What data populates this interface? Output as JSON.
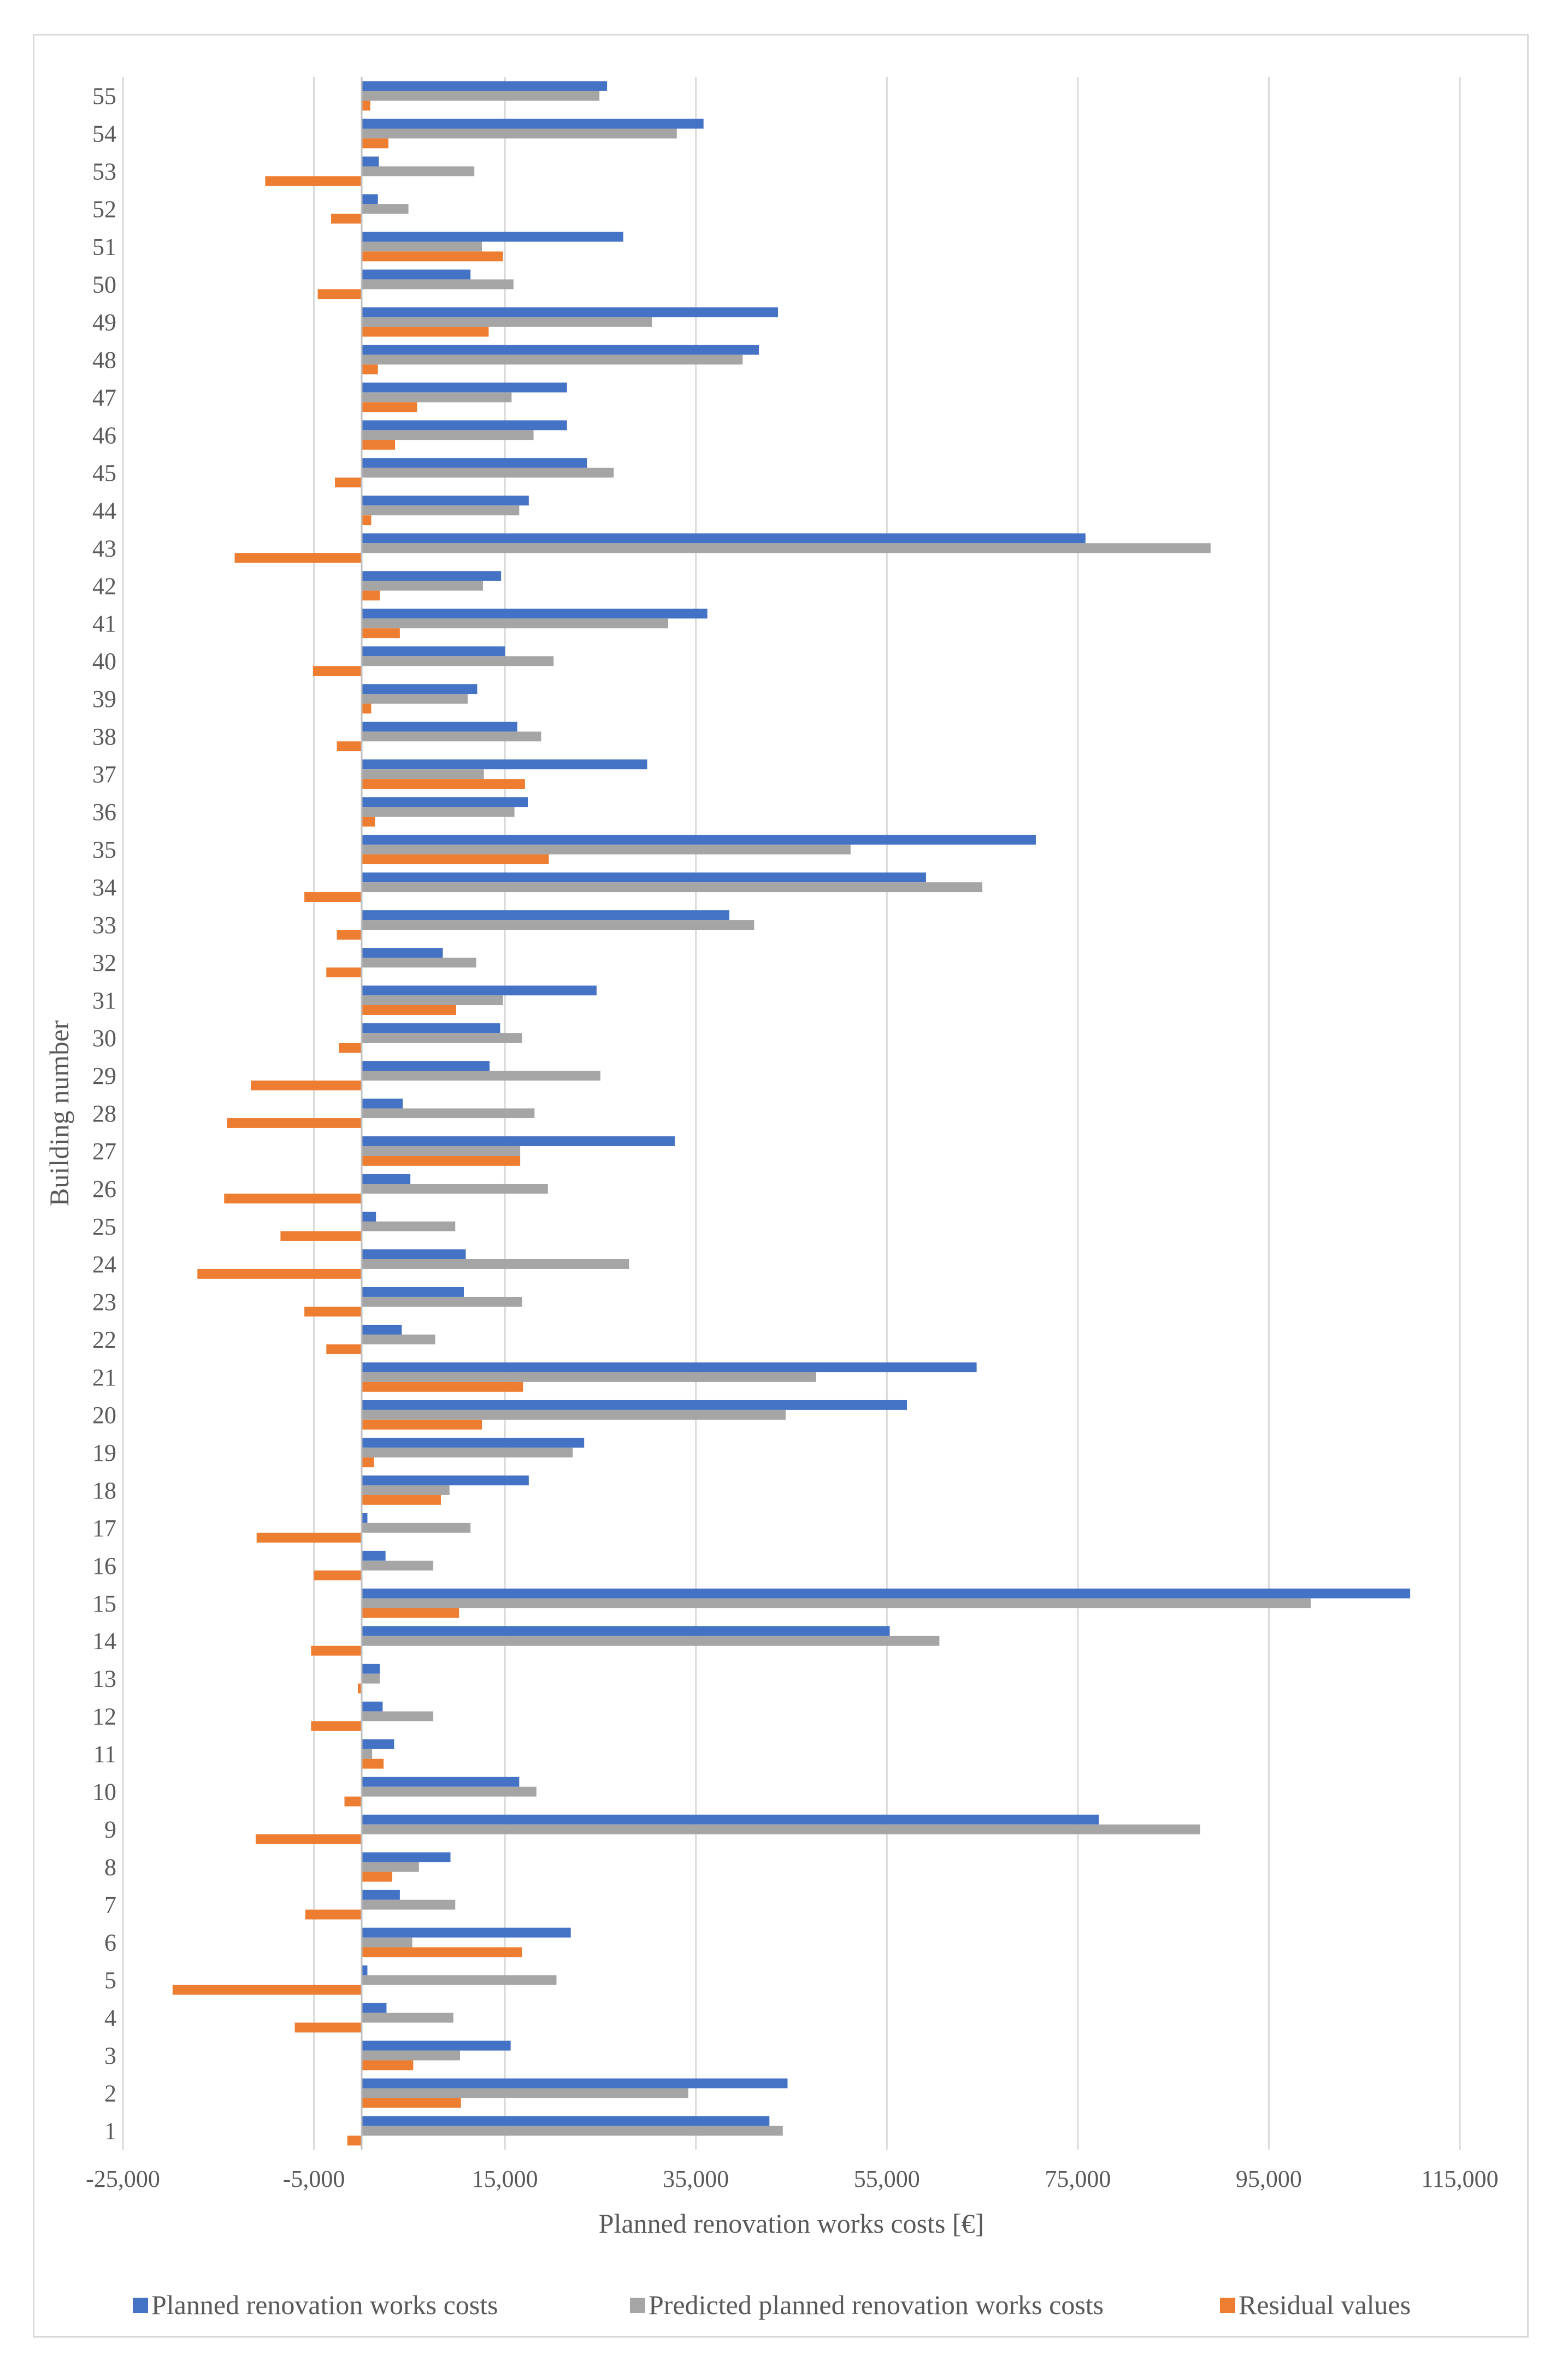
{
  "chart_data": {
    "type": "bar",
    "orientation": "horizontal",
    "title": "",
    "xlabel": "Planned renovation works costs [€]",
    "ylabel": "Building number",
    "xlim": [
      -25000,
      115000
    ],
    "x_ticks": [
      -25000,
      -5000,
      15000,
      35000,
      55000,
      75000,
      95000,
      115000
    ],
    "x_tick_labels": [
      "-25,000",
      "-5,000",
      "15,000",
      "35,000",
      "55,000",
      "75,000",
      "95,000",
      "115,000"
    ],
    "grid": true,
    "legend_position": "bottom",
    "categories": [
      "1",
      "2",
      "3",
      "4",
      "5",
      "6",
      "7",
      "8",
      "9",
      "10",
      "11",
      "12",
      "13",
      "14",
      "15",
      "16",
      "17",
      "18",
      "19",
      "20",
      "21",
      "22",
      "23",
      "24",
      "25",
      "26",
      "27",
      "28",
      "29",
      "30",
      "31",
      "32",
      "33",
      "34",
      "35",
      "36",
      "37",
      "38",
      "39",
      "40",
      "41",
      "42",
      "43",
      "44",
      "45",
      "46",
      "47",
      "48",
      "49",
      "50",
      "51",
      "52",
      "53",
      "54",
      "55"
    ],
    "series": [
      {
        "name": "Planned renovation works costs",
        "color": "#4472c4",
        "values": [
          42700,
          44600,
          15600,
          2600,
          600,
          21900,
          4000,
          9300,
          77200,
          16500,
          3400,
          2200,
          1900,
          55300,
          109800,
          2500,
          600,
          17500,
          23300,
          57100,
          64400,
          4200,
          10700,
          10900,
          1500,
          5100,
          32800,
          4300,
          13400,
          14500,
          24600,
          8500,
          38500,
          59100,
          70600,
          17400,
          29900,
          16300,
          12100,
          15000,
          36200,
          14600,
          75800,
          17500,
          23600,
          21500,
          21500,
          41600,
          43600,
          11400,
          27400,
          1700,
          1800,
          35800,
          25700
        ]
      },
      {
        "name": "Predicted planned renovation works costs",
        "color": "#a5a5a5",
        "values": [
          44100,
          34200,
          10300,
          9600,
          20400,
          5300,
          9800,
          6000,
          87800,
          18300,
          1100,
          7500,
          1900,
          60500,
          99400,
          7500,
          11400,
          9200,
          22100,
          44400,
          47600,
          7700,
          16800,
          28000,
          9800,
          19500,
          16600,
          18100,
          25000,
          16800,
          14800,
          12000,
          41100,
          65000,
          51200,
          16000,
          12800,
          18800,
          11100,
          20100,
          32100,
          12700,
          88900,
          16500,
          26400,
          18000,
          15700,
          39900,
          30400,
          15900,
          12600,
          4900,
          11800,
          33000,
          24900
        ]
      },
      {
        "name": "Residual values",
        "color": "#ed7d31",
        "values": [
          -1500,
          10400,
          5400,
          -7000,
          -19800,
          16800,
          -5900,
          3200,
          -11100,
          -1800,
          2300,
          -5300,
          -400,
          -5300,
          10200,
          -5000,
          -11000,
          8300,
          1300,
          12600,
          16900,
          -3700,
          -6000,
          -17200,
          -8500,
          -14400,
          16600,
          -14100,
          -11600,
          -2400,
          9900,
          -3700,
          -2600,
          -6000,
          19600,
          1400,
          17100,
          -2600,
          1000,
          -5100,
          4000,
          1900,
          -13300,
          1000,
          -2800,
          3500,
          5800,
          1700,
          13300,
          -4600,
          14800,
          -3200,
          -10100,
          2800,
          900
        ]
      }
    ]
  }
}
